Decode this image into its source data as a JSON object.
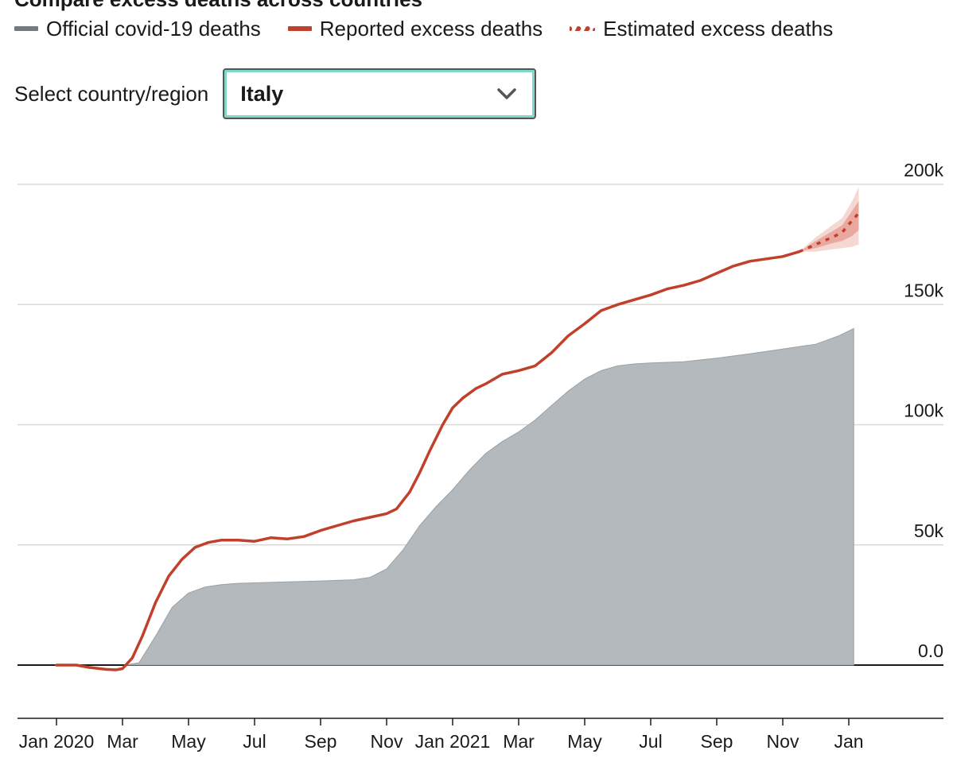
{
  "header": {
    "title": "Compare excess deaths across countries"
  },
  "legend": {
    "items": [
      {
        "label": "Official covid-19 deaths",
        "color": "#737b80",
        "style": "solid"
      },
      {
        "label": "Reported excess deaths",
        "color": "#c0402b",
        "style": "solid"
      },
      {
        "label": "Estimated excess deaths",
        "color": "#c0402b",
        "style": "dotted"
      }
    ]
  },
  "selector": {
    "label": "Select country/region",
    "value": "Italy",
    "icon": "chevron-down-icon"
  },
  "colors": {
    "official_fill": "#b3b9bc",
    "excess_line": "#c0402b",
    "ci_outer": "#f6d8d3",
    "ci_inner": "#eaa9a0",
    "grid": "#d9d9d9",
    "baseline": "#1a1a1a"
  },
  "chart_data": {
    "type": "area",
    "title": "Compare excess deaths across countries",
    "xlabel": "",
    "ylabel": "",
    "ylim": [
      -20000,
      200000
    ],
    "y_ticks": [
      {
        "value": 0,
        "label": "0.0"
      },
      {
        "value": 50000,
        "label": "50k"
      },
      {
        "value": 100000,
        "label": "100k"
      },
      {
        "value": 150000,
        "label": "150k"
      },
      {
        "value": 200000,
        "label": "200k"
      }
    ],
    "x_ticks": [
      {
        "label": "Jan 2020",
        "month": 0
      },
      {
        "label": "Mar",
        "month": 2
      },
      {
        "label": "May",
        "month": 4
      },
      {
        "label": "Jul",
        "month": 6
      },
      {
        "label": "Sep",
        "month": 8
      },
      {
        "label": "Nov",
        "month": 10
      },
      {
        "label": "Jan 2021",
        "month": 12
      },
      {
        "label": "Mar",
        "month": 14
      },
      {
        "label": "May",
        "month": 16
      },
      {
        "label": "Jul",
        "month": 18
      },
      {
        "label": "Sep",
        "month": 20
      },
      {
        "label": "Nov",
        "month": 22
      },
      {
        "label": "Jan",
        "month": 24
      }
    ],
    "series": [
      {
        "name": "Official covid-19 deaths",
        "kind": "area",
        "points": [
          [
            2.1,
            0
          ],
          [
            2.5,
            1000
          ],
          [
            3.0,
            12000
          ],
          [
            3.5,
            24000
          ],
          [
            4.0,
            30000
          ],
          [
            4.5,
            32500
          ],
          [
            5.0,
            33500
          ],
          [
            5.5,
            34000
          ],
          [
            6.0,
            34200
          ],
          [
            7.0,
            34600
          ],
          [
            8.0,
            35000
          ],
          [
            9.0,
            35500
          ],
          [
            9.5,
            36500
          ],
          [
            10.0,
            40000
          ],
          [
            10.5,
            48000
          ],
          [
            11.0,
            58000
          ],
          [
            11.5,
            66000
          ],
          [
            12.0,
            73000
          ],
          [
            12.5,
            81000
          ],
          [
            13.0,
            88000
          ],
          [
            13.5,
            93000
          ],
          [
            14.0,
            97000
          ],
          [
            14.5,
            102000
          ],
          [
            15.0,
            108000
          ],
          [
            15.5,
            114000
          ],
          [
            16.0,
            119000
          ],
          [
            16.5,
            122500
          ],
          [
            17.0,
            124500
          ],
          [
            17.5,
            125300
          ],
          [
            18.0,
            125700
          ],
          [
            19.0,
            126200
          ],
          [
            20.0,
            127700
          ],
          [
            21.0,
            129500
          ],
          [
            22.0,
            131500
          ],
          [
            23.0,
            133500
          ],
          [
            23.7,
            137000
          ],
          [
            24.15,
            140000
          ]
        ]
      },
      {
        "name": "Reported excess deaths",
        "kind": "line",
        "points": [
          [
            0.0,
            0
          ],
          [
            0.6,
            0
          ],
          [
            1.0,
            -1000
          ],
          [
            1.5,
            -1800
          ],
          [
            1.8,
            -2000
          ],
          [
            2.0,
            -1500
          ],
          [
            2.3,
            3000
          ],
          [
            2.6,
            12000
          ],
          [
            3.0,
            26000
          ],
          [
            3.4,
            37000
          ],
          [
            3.8,
            44000
          ],
          [
            4.2,
            49000
          ],
          [
            4.6,
            51000
          ],
          [
            5.0,
            52000
          ],
          [
            5.5,
            52000
          ],
          [
            6.0,
            51500
          ],
          [
            6.5,
            53000
          ],
          [
            7.0,
            52500
          ],
          [
            7.5,
            53500
          ],
          [
            8.0,
            56000
          ],
          [
            8.5,
            58000
          ],
          [
            9.0,
            60000
          ],
          [
            9.5,
            61500
          ],
          [
            10.0,
            63000
          ],
          [
            10.3,
            65000
          ],
          [
            10.7,
            72000
          ],
          [
            11.0,
            80000
          ],
          [
            11.3,
            89000
          ],
          [
            11.7,
            100000
          ],
          [
            12.0,
            107000
          ],
          [
            12.3,
            111000
          ],
          [
            12.7,
            115000
          ],
          [
            13.0,
            117000
          ],
          [
            13.5,
            121000
          ],
          [
            14.0,
            122500
          ],
          [
            14.5,
            124500
          ],
          [
            15.0,
            130000
          ],
          [
            15.5,
            137000
          ],
          [
            16.0,
            142000
          ],
          [
            16.5,
            147500
          ],
          [
            17.0,
            150000
          ],
          [
            17.5,
            152000
          ],
          [
            18.0,
            154000
          ],
          [
            18.5,
            156500
          ],
          [
            19.0,
            158000
          ],
          [
            19.5,
            160000
          ],
          [
            20.0,
            163000
          ],
          [
            20.5,
            166000
          ],
          [
            21.0,
            168000
          ],
          [
            21.5,
            169000
          ],
          [
            22.0,
            170000
          ],
          [
            22.5,
            172000
          ]
        ]
      },
      {
        "name": "Estimated excess deaths",
        "kind": "dotted",
        "points": [
          [
            22.5,
            172000
          ],
          [
            23.0,
            175000
          ],
          [
            23.5,
            178000
          ],
          [
            23.8,
            180000
          ],
          [
            24.1,
            185000
          ],
          [
            24.3,
            188000
          ]
        ],
        "ci_outer_upper": [
          [
            22.5,
            172000
          ],
          [
            23.0,
            178000
          ],
          [
            23.5,
            183000
          ],
          [
            23.8,
            186000
          ],
          [
            24.1,
            193000
          ],
          [
            24.3,
            199000
          ]
        ],
        "ci_outer_lower": [
          [
            22.5,
            172000
          ],
          [
            23.0,
            172000
          ],
          [
            23.5,
            173000
          ],
          [
            23.8,
            173500
          ],
          [
            24.1,
            174000
          ],
          [
            24.3,
            175000
          ]
        ],
        "ci_inner_upper": [
          [
            22.5,
            172000
          ],
          [
            23.0,
            176500
          ],
          [
            23.5,
            180500
          ],
          [
            23.8,
            183000
          ],
          [
            24.1,
            189000
          ],
          [
            24.3,
            193000
          ]
        ],
        "ci_inner_lower": [
          [
            22.5,
            172000
          ],
          [
            23.0,
            173500
          ],
          [
            23.5,
            175500
          ],
          [
            23.8,
            176500
          ],
          [
            24.1,
            178500
          ],
          [
            24.3,
            181000
          ]
        ]
      }
    ]
  }
}
